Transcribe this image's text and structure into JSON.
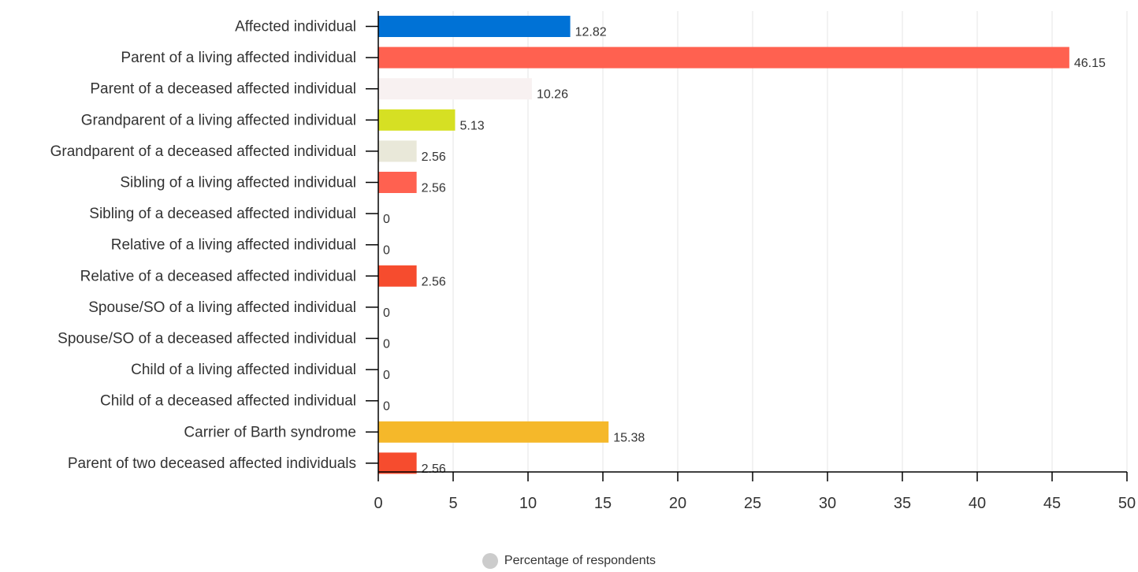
{
  "chart_data": {
    "type": "bar",
    "orientation": "horizontal",
    "title": "",
    "xlabel": "",
    "ylabel": "",
    "xlim": [
      0,
      50
    ],
    "x_ticks": [
      "0",
      "5",
      "10",
      "15",
      "20",
      "25",
      "30",
      "35",
      "40",
      "45",
      "50"
    ],
    "grid": "vertical",
    "legend_position": "bottom-center",
    "categories": [
      "Affected individual",
      "Parent of a living affected individual",
      "Parent of a deceased affected individual",
      "Grandparent of a living affected individual",
      "Grandparent of a deceased affected individual",
      "Sibling of a living affected individual",
      "Sibling of a deceased affected individual",
      "Relative of a living affected individual",
      "Relative of a deceased affected individual",
      "Spouse/SO of a living affected individual",
      "Spouse/SO of a deceased affected individual",
      "Child of a living affected individual",
      "Child of a deceased affected individual",
      "Carrier of Barth syndrome",
      "Parent of two deceased affected individuals"
    ],
    "series": [
      {
        "name": "Percentage of respondents",
        "values": [
          12.82,
          46.15,
          10.26,
          5.13,
          2.56,
          2.56,
          0,
          0,
          2.56,
          0,
          0,
          0,
          0,
          15.38,
          2.56
        ],
        "value_labels": [
          "12.82",
          "46.15",
          "10.26",
          "5.13",
          "2.56",
          "2.56",
          "0",
          "0",
          "2.56",
          "0",
          "0",
          "0",
          "0",
          "15.38",
          "2.56"
        ],
        "colors": [
          "#0072d6",
          "#ff6150",
          "#f8f1f1",
          "#d6e023",
          "#e9e8d9",
          "#ff6150",
          "#ff6150",
          "#ff6150",
          "#f64c2e",
          "#ff6150",
          "#ff6150",
          "#ff6150",
          "#ff6150",
          "#f5b82a",
          "#f64c2e"
        ]
      }
    ],
    "legend_swatch_color": "#cccccc",
    "colors": {
      "axis": "#000000",
      "grid": "#e6e6e6",
      "label_text": "#333333"
    }
  }
}
